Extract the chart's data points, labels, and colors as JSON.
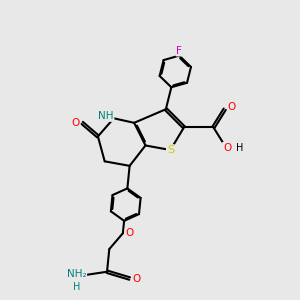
{
  "background_color": "#e8e8e8",
  "atom_colors": {
    "C": "#000000",
    "N": "#008080",
    "O": "#ff0000",
    "S": "#cccc00",
    "F": "#cc00cc",
    "H": "#008080"
  },
  "bond_color": "#000000",
  "bond_width": 1.5,
  "dbo": 0.055
}
